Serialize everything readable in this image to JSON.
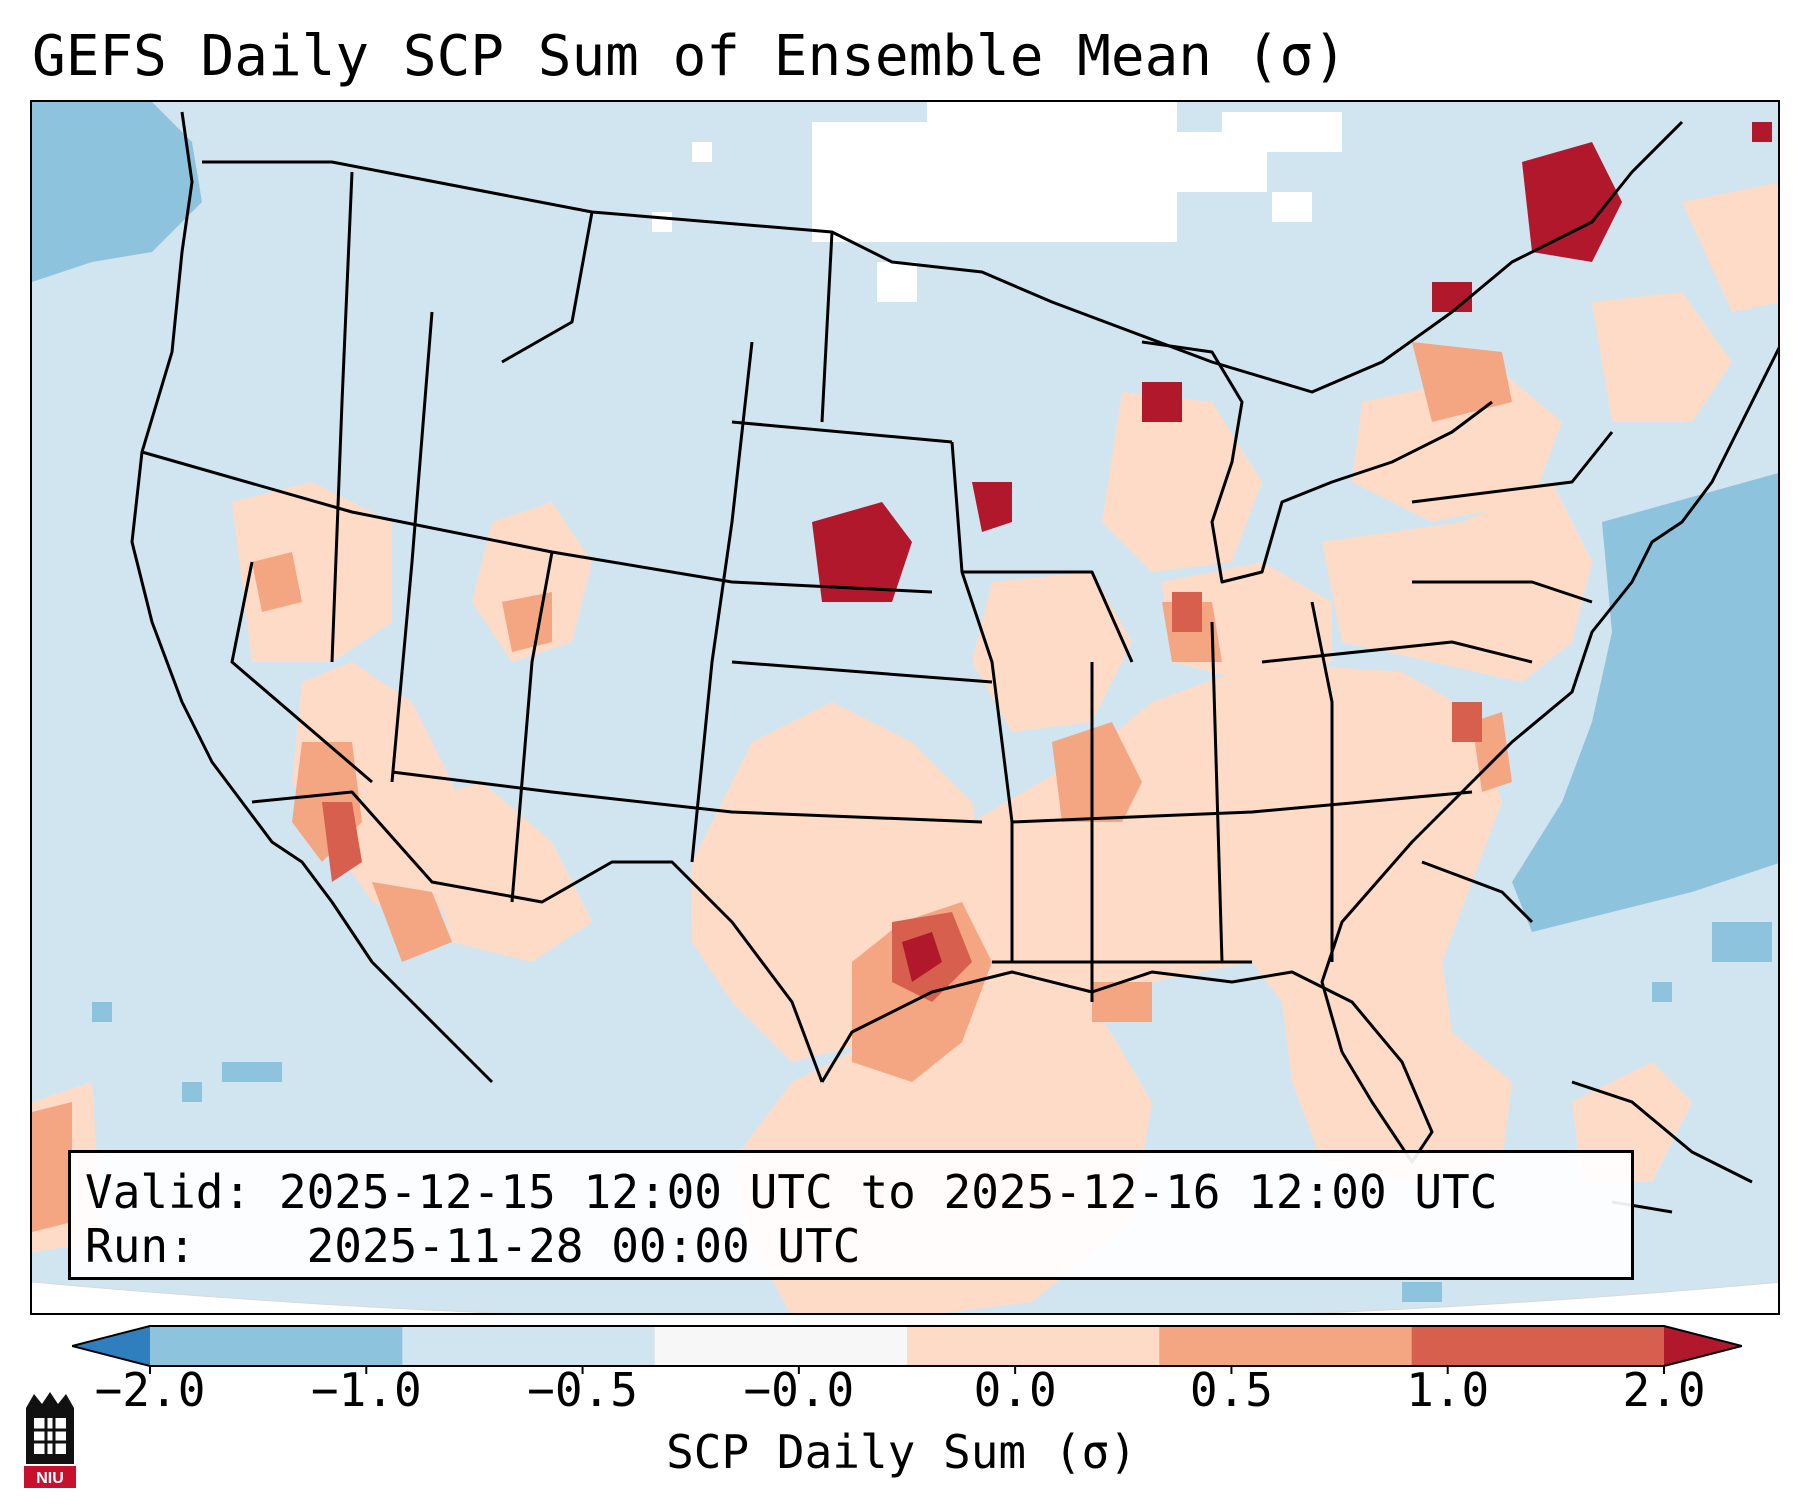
{
  "title": "GEFS Daily SCP Sum of Ensemble Mean (σ)",
  "info": {
    "valid_label": "Valid:",
    "valid_range": "2025-12-15 12:00 UTC to 2025-12-16 12:00 UTC",
    "run_label": "Run:",
    "run_time": "2025-11-28 00:00 UTC"
  },
  "colorbar": {
    "label": "SCP Daily Sum (σ)",
    "ticks": [
      "−2.0",
      "−1.0",
      "−0.5",
      "−0.0",
      "0.0",
      "0.5",
      "1.0",
      "2.0"
    ],
    "colors": [
      "#2f7fbf",
      "#8ec3de",
      "#d1e5f0",
      "#f7f7f7",
      "#fddbc7",
      "#f4a582",
      "#d6604d",
      "#b2182b"
    ]
  },
  "map": {
    "type": "gridded field over continental United States",
    "field_colors": {
      "weak_negative": "#d1e5f0",
      "moderate_negative": "#8ec3de",
      "neutral": "#ffffff",
      "weak_positive": "#fddbc7",
      "moderate_positive": "#f4a582",
      "strong_positive": "#d6604d",
      "extreme_positive": "#b2182b"
    },
    "boundary_color": "#000000"
  },
  "logo": {
    "text": "NIU",
    "colors": {
      "red": "#c8102e",
      "black": "#111111"
    }
  }
}
